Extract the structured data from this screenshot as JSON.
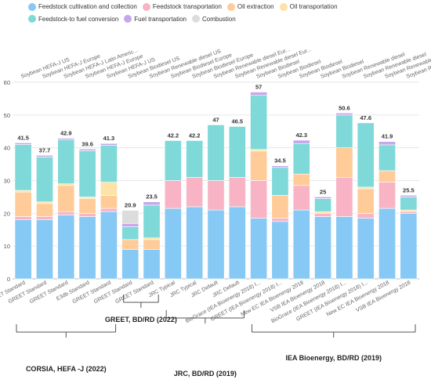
{
  "chart_data": {
    "type": "bar",
    "stacked": true,
    "ylim": [
      0,
      60
    ],
    "yticks": [
      0,
      10,
      20,
      30,
      40,
      50,
      60
    ],
    "grid": true,
    "legend_position": "top",
    "categories": [
      {
        "top": "Soybean HEFA-J US",
        "bottom": "GREET Standard",
        "total_label": "41.5"
      },
      {
        "top": "Soybean HEFA-J Europe",
        "bottom": "GREET Standard",
        "total_label": "37.7"
      },
      {
        "top": "Soybean HEFA-J Latin Americ...",
        "bottom": "GREET Standard",
        "total_label": "42.9"
      },
      {
        "top": "Soybean HEFA-J Europe",
        "bottom": "E3db Standard",
        "total_label": "39.6"
      },
      {
        "top": "Soybean HEFA-J US",
        "bottom": "GREET Standard",
        "total_label": "41.3"
      },
      {
        "top": "Soybean Biodiesel US",
        "bottom": "GREET Standard",
        "total_label": "20.9"
      },
      {
        "top": "Soybean Renewable diesel US",
        "bottom": "GREET Standard",
        "total_label": "23.5"
      },
      {
        "top": "Soybean Biodiesel Europe",
        "bottom": "JRC Typical",
        "total_label": "42.2"
      },
      {
        "top": "Soybean Biodiesel Europe",
        "bottom": "JRC Typical",
        "total_label": "42.2"
      },
      {
        "top": "Soybean Renewable diesel Eur...",
        "bottom": "JRC Default",
        "total_label": "47"
      },
      {
        "top": "Soybean Renewable diesel Eur...",
        "bottom": "JRC Default",
        "total_label": "46.5"
      },
      {
        "top": "Soybean Biodiesel",
        "bottom": "BioGrace (IEA Bioenergy 2018) I...",
        "total_label": "57"
      },
      {
        "top": "Soybean Biodiesel",
        "bottom": "GREET (IEA Bioenergy 2018) I...",
        "total_label": "34.5"
      },
      {
        "top": "Soybean Biodiesel",
        "bottom": "New EC  IEA Bioenergy 2018",
        "total_label": "42.3"
      },
      {
        "top": "Soybean Biodiesel",
        "bottom": "VSB IEA Bioenergy 2018",
        "total_label": "25"
      },
      {
        "top": "Soybean Renewable diesel",
        "bottom": "BioGrace (IEA Bioenergy 2018) I...",
        "total_label": "50.6"
      },
      {
        "top": "Soybean Renewable diesel",
        "bottom": "GREET (IEA Bioenergy 2018) I...",
        "total_label": "47.6"
      },
      {
        "top": "Soybean Renewable diesel",
        "bottom": "New EC  IEA Bioenergy 2018",
        "total_label": "41.9"
      },
      {
        "top": "Soybean Renewable diesel",
        "bottom": "VSB IEA Bioenergy 2018",
        "total_label": "25.5"
      }
    ],
    "series": [
      {
        "name": "Feedstock cultivation and collection",
        "color": "#87c9f5",
        "values": [
          18,
          18,
          19.5,
          19,
          20.5,
          9,
          9,
          21.5,
          22,
          21,
          22,
          18.5,
          17.5,
          21,
          19,
          19,
          18.5,
          21.5,
          20
        ]
      },
      {
        "name": "Feedstock transportation",
        "color": "#f8b4c4",
        "values": [
          1,
          1,
          1,
          1,
          1,
          0,
          0,
          8.5,
          9,
          9,
          9,
          11.5,
          1,
          7.5,
          1,
          12,
          1.5,
          8,
          0.5
        ]
      },
      {
        "name": "Oil extraction",
        "color": "#ffcc99",
        "values": [
          7.5,
          4,
          8,
          4.5,
          4,
          3,
          3,
          0,
          0,
          0,
          0,
          9,
          7,
          3.5,
          0,
          9,
          7.5,
          3.5,
          0
        ]
      },
      {
        "name": "Oil transportation",
        "color": "#fde3a7",
        "values": [
          0.5,
          0.5,
          0.5,
          0.5,
          4,
          0,
          0.5,
          0,
          0,
          0,
          0,
          0.5,
          0,
          0,
          0.5,
          0,
          0.5,
          0,
          0.5
        ]
      },
      {
        "name": "Feedstock-to fuel conversion",
        "color": "#7fd9d9",
        "values": [
          14,
          13.7,
          13.4,
          14.1,
          11.3,
          3.9,
          10,
          12.2,
          11.2,
          17,
          15.5,
          16.5,
          8.5,
          9.3,
          4,
          10,
          19.6,
          7.9,
          4
        ]
      },
      {
        "name": "Fuel transportation",
        "color": "#c4a8ea",
        "values": [
          0.5,
          0.5,
          0.5,
          0.5,
          0.5,
          1,
          1,
          0,
          0,
          0,
          0,
          1,
          0.5,
          1,
          0.5,
          0.6,
          0,
          1,
          0.5
        ]
      },
      {
        "name": "Combustion",
        "color": "#dcdcdc",
        "values": [
          0,
          0,
          0,
          0,
          0,
          4,
          0,
          0,
          0,
          0,
          0,
          0,
          0,
          0,
          0,
          0,
          0,
          0,
          0
        ]
      }
    ],
    "groups": [
      {
        "label": "CORSIA, HEFA -J (2022)",
        "from": 0,
        "to": 4
      },
      {
        "label": "GREET, BD/RD (2022)",
        "from": 5,
        "to": 6
      },
      {
        "label": "JRC, BD/RD (2019)",
        "from": 7,
        "to": 10
      },
      {
        "label": "IEA Bioenergy, BD/RD (2019)",
        "from": 11,
        "to": 18
      }
    ]
  }
}
